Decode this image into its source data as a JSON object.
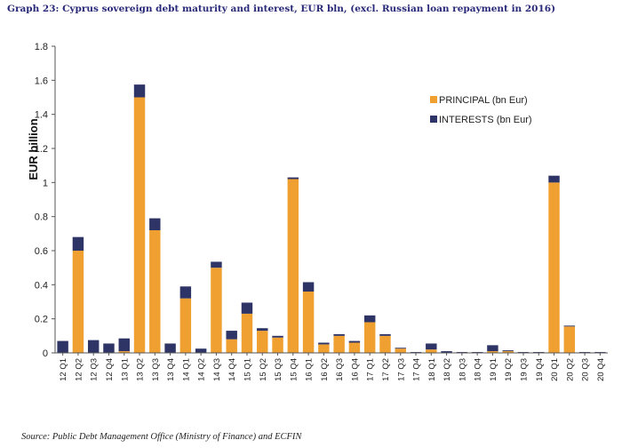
{
  "title": "Graph 23: Cyprus sovereign debt maturity and interest, EUR bln, (excl. Russian loan repayment in 2016)",
  "source": "Source: Public Debt Management Office (Ministry of Finance) and ECFIN",
  "chart_data": {
    "type": "bar",
    "stacked": true,
    "title": "Graph 23: Cyprus sovereign debt maturity and interest, EUR bln, (excl. Russian loan repayment in 2016)",
    "ylabel": "EUR billion",
    "ylim": [
      0,
      1.8
    ],
    "yticks": [
      "0",
      "0.2",
      "0.4",
      "0.6",
      "0.8",
      "1",
      "1.2",
      "1.4",
      "1.6",
      "1.8"
    ],
    "legend_position": "top-right",
    "categories": [
      "12 Q1",
      "12 Q2",
      "12 Q3",
      "12 Q4",
      "13 Q1",
      "13 Q2",
      "13 Q3",
      "13 Q4",
      "14 Q1",
      "14 Q2",
      "14 Q3",
      "14 Q4",
      "15 Q1",
      "15 Q2",
      "15 Q3",
      "15 Q4",
      "16 Q1",
      "16 Q2",
      "16 Q3",
      "16 Q4",
      "17 Q1",
      "17 Q2",
      "17 Q3",
      "17 Q4",
      "18 Q1",
      "18 Q2",
      "18 Q3",
      "18 Q4",
      "19 Q1",
      "19 Q2",
      "19 Q3",
      "19 Q4",
      "20 Q1",
      "20 Q2",
      "20 Q3",
      "20 Q4"
    ],
    "series": [
      {
        "name": "PRINCIPAL (bn Eur)",
        "color": "#f0a030",
        "values": [
          0.0,
          0.6,
          0.0,
          0.0,
          0.01,
          1.5,
          0.72,
          0.0,
          0.32,
          0.0,
          0.5,
          0.08,
          0.23,
          0.13,
          0.09,
          1.02,
          0.36,
          0.05,
          0.1,
          0.06,
          0.18,
          0.1,
          0.025,
          0.0,
          0.02,
          0.0,
          0.0,
          0.0,
          0.01,
          0.01,
          0.0,
          0.0,
          1.0,
          0.155,
          0.0,
          0.0
        ]
      },
      {
        "name": "INTERESTS (bn Eur)",
        "color": "#2e3566",
        "values": [
          0.07,
          0.08,
          0.075,
          0.055,
          0.075,
          0.075,
          0.07,
          0.055,
          0.07,
          0.025,
          0.035,
          0.05,
          0.065,
          0.015,
          0.01,
          0.01,
          0.055,
          0.01,
          0.01,
          0.01,
          0.04,
          0.01,
          0.005,
          0.005,
          0.035,
          0.01,
          0.005,
          0.005,
          0.035,
          0.005,
          0.005,
          0.005,
          0.04,
          0.005,
          0.005,
          0.005
        ]
      }
    ]
  }
}
